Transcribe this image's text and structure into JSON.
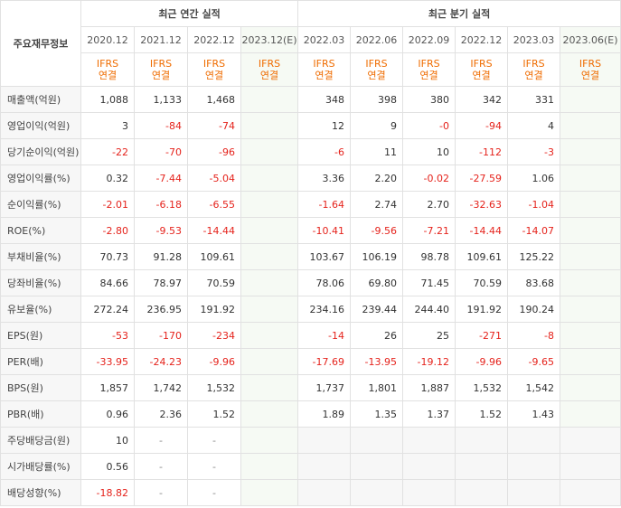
{
  "header": {
    "corner_label": "주요재무정보",
    "annual_title": "최근 연간 실적",
    "quarterly_title": "최근 분기 실적",
    "annual_periods": [
      "2020.12",
      "2021.12",
      "2022.12",
      "2023.12(E)"
    ],
    "quarterly_periods": [
      "2022.03",
      "2022.06",
      "2022.09",
      "2022.12",
      "2023.03",
      "2023.06(E)"
    ],
    "basis_line1": "IFRS",
    "basis_line2": "연결"
  },
  "rows": [
    {
      "label": "매출액(억원)",
      "annual": [
        "1,088",
        "1,133",
        "1,468",
        ""
      ],
      "quarterly": [
        "348",
        "398",
        "380",
        "342",
        "331",
        ""
      ]
    },
    {
      "label": "영업이익(억원)",
      "annual": [
        "3",
        "-84",
        "-74",
        ""
      ],
      "quarterly": [
        "12",
        "9",
        "-0",
        "-94",
        "4",
        ""
      ]
    },
    {
      "label": "당기순이익(억원)",
      "annual": [
        "-22",
        "-70",
        "-96",
        ""
      ],
      "quarterly": [
        "-6",
        "11",
        "10",
        "-112",
        "-3",
        ""
      ]
    },
    {
      "label": "영업이익률(%)",
      "annual": [
        "0.32",
        "-7.44",
        "-5.04",
        ""
      ],
      "quarterly": [
        "3.36",
        "2.20",
        "-0.02",
        "-27.59",
        "1.06",
        ""
      ]
    },
    {
      "label": "순이익률(%)",
      "annual": [
        "-2.01",
        "-6.18",
        "-6.55",
        ""
      ],
      "quarterly": [
        "-1.64",
        "2.74",
        "2.70",
        "-32.63",
        "-1.04",
        ""
      ]
    },
    {
      "label": "ROE(%)",
      "annual": [
        "-2.80",
        "-9.53",
        "-14.44",
        ""
      ],
      "quarterly": [
        "-10.41",
        "-9.56",
        "-7.21",
        "-14.44",
        "-14.07",
        ""
      ]
    },
    {
      "label": "부채비율(%)",
      "annual": [
        "70.73",
        "91.28",
        "109.61",
        ""
      ],
      "quarterly": [
        "103.67",
        "106.19",
        "98.78",
        "109.61",
        "125.22",
        ""
      ]
    },
    {
      "label": "당좌비율(%)",
      "annual": [
        "84.66",
        "78.97",
        "70.59",
        ""
      ],
      "quarterly": [
        "78.06",
        "69.80",
        "71.45",
        "70.59",
        "83.68",
        ""
      ]
    },
    {
      "label": "유보율(%)",
      "annual": [
        "272.24",
        "236.95",
        "191.92",
        ""
      ],
      "quarterly": [
        "234.16",
        "239.44",
        "244.40",
        "191.92",
        "190.24",
        ""
      ]
    },
    {
      "label": "EPS(원)",
      "annual": [
        "-53",
        "-170",
        "-234",
        ""
      ],
      "quarterly": [
        "-14",
        "26",
        "25",
        "-271",
        "-8",
        ""
      ]
    },
    {
      "label": "PER(배)",
      "annual": [
        "-33.95",
        "-24.23",
        "-9.96",
        ""
      ],
      "quarterly": [
        "-17.69",
        "-13.95",
        "-19.12",
        "-9.96",
        "-9.65",
        ""
      ]
    },
    {
      "label": "BPS(원)",
      "annual": [
        "1,857",
        "1,742",
        "1,532",
        ""
      ],
      "quarterly": [
        "1,737",
        "1,801",
        "1,887",
        "1,532",
        "1,542",
        ""
      ]
    },
    {
      "label": "PBR(배)",
      "annual": [
        "0.96",
        "2.36",
        "1.52",
        ""
      ],
      "quarterly": [
        "1.89",
        "1.35",
        "1.37",
        "1.52",
        "1.43",
        ""
      ]
    },
    {
      "label": "주당배당금(원)",
      "annual": [
        "10",
        "-",
        "-",
        ""
      ],
      "quarterly": [
        "",
        "",
        "",
        "",
        "",
        ""
      ]
    },
    {
      "label": "시가배당률(%)",
      "annual": [
        "0.56",
        "-",
        "-",
        ""
      ],
      "quarterly": [
        "",
        "",
        "",
        "",
        "",
        ""
      ]
    },
    {
      "label": "배당성향(%)",
      "annual": [
        "-18.82",
        "-",
        "-",
        ""
      ],
      "quarterly": [
        "",
        "",
        "",
        "",
        "",
        ""
      ]
    }
  ],
  "colors": {
    "negative": "#e5231c",
    "basis": "#ef6c00",
    "estimate_bg": "#f6faf4"
  }
}
